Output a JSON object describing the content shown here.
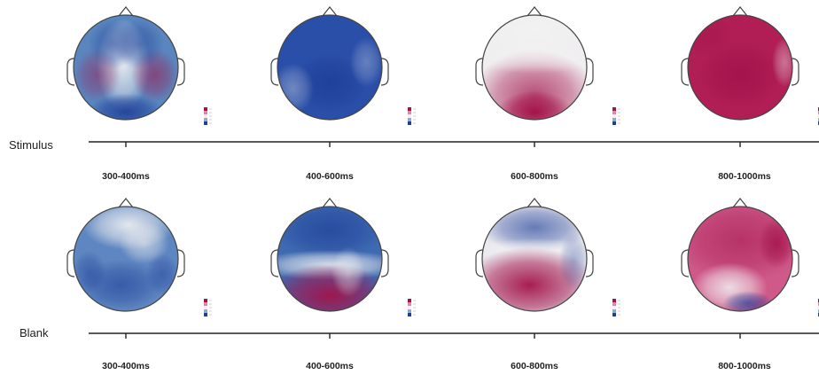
{
  "conditions": [
    {
      "label": "Stimulus",
      "maps": [
        {
          "window": "300-400ms",
          "pattern": "stim_300_400"
        },
        {
          "window": "400-600ms",
          "pattern": "stim_400_600"
        },
        {
          "window": "600-800ms",
          "pattern": "stim_600_800"
        },
        {
          "window": "800-1000ms",
          "pattern": "stim_800_1000"
        }
      ]
    },
    {
      "label": "Blank",
      "maps": [
        {
          "window": "300-400ms",
          "pattern": "blank_300_400"
        },
        {
          "window": "400-600ms",
          "pattern": "blank_400_600"
        },
        {
          "window": "600-800ms",
          "pattern": "blank_600_800"
        },
        {
          "window": "800-1000ms",
          "pattern": "blank_800_1000"
        }
      ]
    }
  ],
  "colors": {
    "positive": "#a3134a",
    "neutral": "#f2f2f2",
    "negative": "#1f3f99",
    "outline": "#444444",
    "axis": "#222222"
  }
}
